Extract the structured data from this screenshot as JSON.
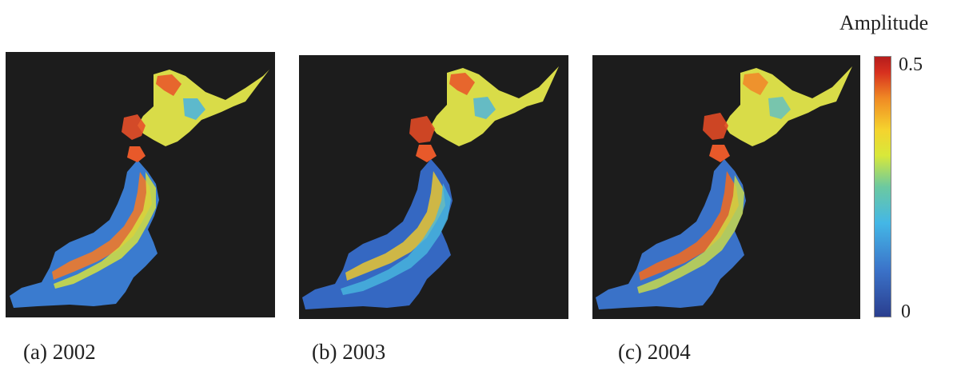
{
  "legend": {
    "title": "Amplitude",
    "max_label": "0.5",
    "min_label": "0",
    "colormap": [
      "#2a3e8f",
      "#3b73c9",
      "#44b7e6",
      "#6cc9a0",
      "#d8e83a",
      "#f5d32e",
      "#f08a24",
      "#d7301f",
      "#b51c1c"
    ]
  },
  "colors": {
    "background": "#1c1c1c",
    "low": "#2f5fb8",
    "midlow": "#3fa9de",
    "mid": "#c6d94b",
    "midhigh": "#f0c22d",
    "high": "#e8502a"
  },
  "panels": [
    {
      "caption": "(a) 2002",
      "year": "2002"
    },
    {
      "caption": "(b) 2003",
      "year": "2003"
    },
    {
      "caption": "(c) 2004",
      "year": "2004"
    }
  ]
}
